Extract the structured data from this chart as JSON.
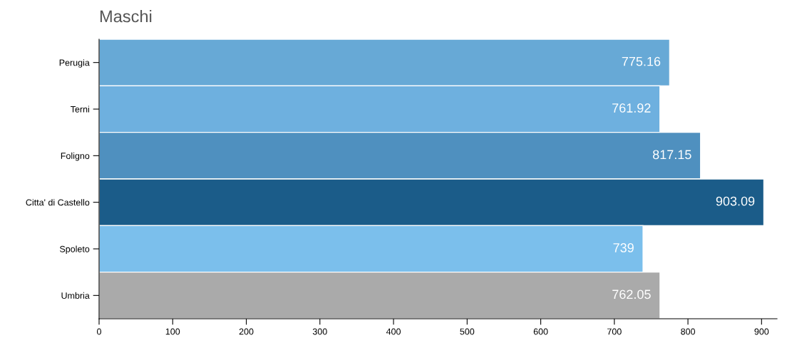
{
  "chart_data": {
    "type": "bar",
    "orientation": "horizontal",
    "title": "Maschi",
    "categories": [
      "Perugia",
      "Terni",
      "Foligno",
      "Citta' di Castello",
      "Spoleto",
      "Umbria"
    ],
    "values": [
      775.16,
      761.92,
      817.15,
      903.09,
      739,
      762.05
    ],
    "colors": [
      "#67a9d6",
      "#6eb0df",
      "#4f90bf",
      "#1b5c89",
      "#7bbfec",
      "#aaaaaa"
    ],
    "data_labels": true,
    "xlim": [
      0,
      921
    ],
    "xticks": [
      0,
      100,
      200,
      300,
      400,
      500,
      600,
      700,
      800,
      900
    ],
    "grid": false,
    "legend": false
  }
}
